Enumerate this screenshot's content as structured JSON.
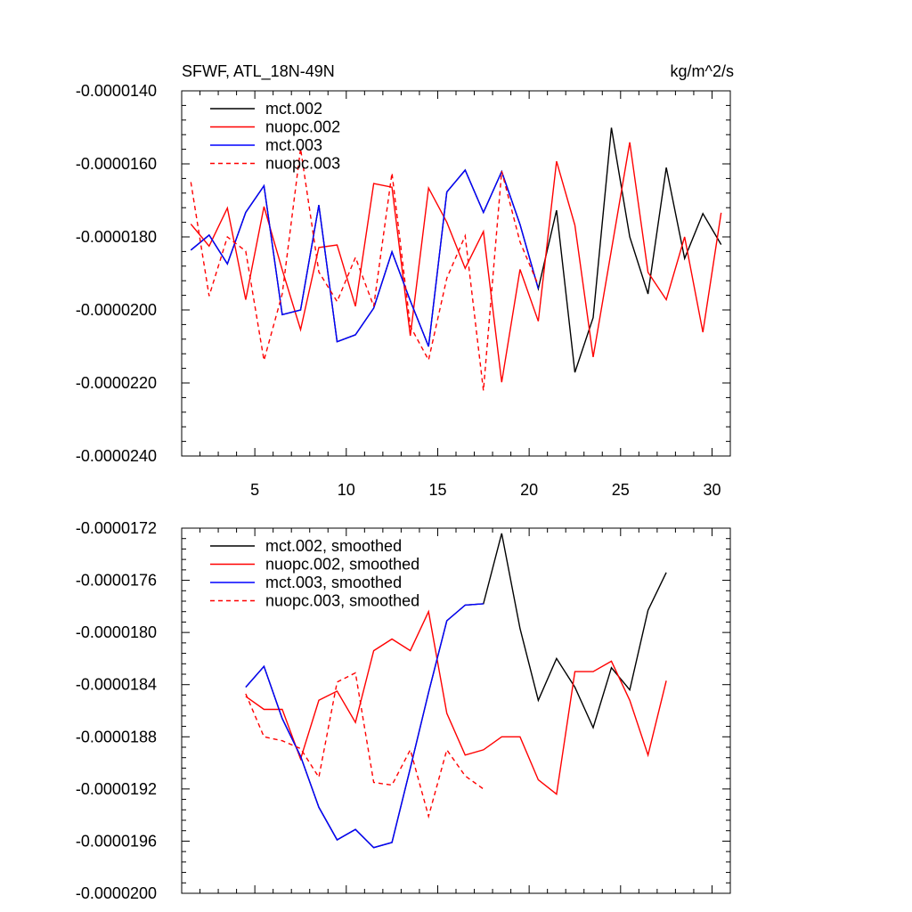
{
  "chart_data": [
    {
      "type": "line",
      "title": "SFWF, ATL_18N-49N",
      "units": "kg/m^2/s",
      "xlim": [
        1,
        31
      ],
      "ylim": [
        -2.4e-05,
        -1.4e-05
      ],
      "yticks": [
        {
          "value": -1.4e-05,
          "label": "-0.0000140"
        },
        {
          "value": -1.6e-05,
          "label": "-0.0000160"
        },
        {
          "value": -1.8e-05,
          "label": "-0.0000180"
        },
        {
          "value": -2e-05,
          "label": "-0.0000200"
        },
        {
          "value": -2.2e-05,
          "label": "-0.0000220"
        },
        {
          "value": -2.4e-05,
          "label": "-0.0000240"
        }
      ],
      "xticks": [
        {
          "value": 5,
          "label": "5"
        },
        {
          "value": 10,
          "label": "10"
        },
        {
          "value": 15,
          "label": "15"
        },
        {
          "value": 20,
          "label": "20"
        },
        {
          "value": 25,
          "label": "25"
        },
        {
          "value": 30,
          "label": "30"
        }
      ],
      "legend_position": "top-left",
      "series": [
        {
          "name": "mct.002",
          "color": "#000000",
          "dashed": false,
          "x": [
            1.5,
            2.5,
            3.5,
            4.5,
            5.5,
            6.5,
            7.5,
            8.5,
            9.5,
            10.5,
            11.5,
            12.5,
            13.5,
            14.5,
            15.5,
            16.5,
            17.5,
            18.5,
            19.5,
            20.5,
            21.5,
            22.5,
            23.5,
            24.5,
            25.5,
            26.5,
            27.5,
            28.5,
            29.5,
            30.5
          ],
          "values": [
            -1.836e-05,
            -1.795e-05,
            -1.874e-05,
            -1.733e-05,
            -1.66e-05,
            -2.013e-05,
            -2e-05,
            -1.713e-05,
            -2.087e-05,
            -2.068e-05,
            -1.995e-05,
            -1.841e-05,
            -1.975e-05,
            -2.1e-05,
            -1.677e-05,
            -1.617e-05,
            -1.733e-05,
            -1.621e-05,
            -1.766e-05,
            -1.942e-05,
            -1.727e-05,
            -2.171e-05,
            -2.021e-05,
            -1.501e-05,
            -1.8e-05,
            -1.956e-05,
            -1.61e-05,
            -1.859e-05,
            -1.736e-05,
            -1.821e-05
          ]
        },
        {
          "name": "nuopc.002",
          "color": "#ff0000",
          "dashed": false,
          "x": [
            1.5,
            2.5,
            3.5,
            4.5,
            5.5,
            6.5,
            7.5,
            8.5,
            9.5,
            10.5,
            11.5,
            12.5,
            13.5,
            14.5,
            15.5,
            16.5,
            17.5,
            18.5,
            19.5,
            20.5,
            21.5,
            22.5,
            23.5,
            24.5,
            25.5,
            26.5,
            27.5,
            28.5,
            29.5,
            30.5
          ],
          "values": [
            -1.765e-05,
            -1.825e-05,
            -1.721e-05,
            -1.972e-05,
            -1.717e-05,
            -1.89e-05,
            -2.054e-05,
            -1.829e-05,
            -1.822e-05,
            -1.99e-05,
            -1.654e-05,
            -1.664e-05,
            -2.071e-05,
            -1.666e-05,
            -1.76e-05,
            -1.886e-05,
            -1.785e-05,
            -2.198e-05,
            -1.889e-05,
            -2.031e-05,
            -1.593e-05,
            -1.768e-05,
            -2.129e-05,
            -1.836e-05,
            -1.541e-05,
            -1.897e-05,
            -1.972e-05,
            -1.8e-05,
            -2.061e-05,
            -1.734e-05
          ]
        },
        {
          "name": "mct.003",
          "color": "#0000ff",
          "dashed": false,
          "x": [
            1.5,
            2.5,
            3.5,
            4.5,
            5.5,
            6.5,
            7.5,
            8.5,
            9.5,
            10.5,
            11.5,
            12.5,
            13.5,
            14.5,
            15.5,
            16.5,
            17.5,
            18.5,
            19.5,
            20.5
          ],
          "values": [
            -1.836e-05,
            -1.795e-05,
            -1.874e-05,
            -1.733e-05,
            -1.66e-05,
            -2.013e-05,
            -2e-05,
            -1.713e-05,
            -2.087e-05,
            -2.068e-05,
            -1.995e-05,
            -1.841e-05,
            -1.975e-05,
            -2.1e-05,
            -1.677e-05,
            -1.617e-05,
            -1.733e-05,
            -1.621e-05,
            -1.766e-05,
            -1.942e-05
          ]
        },
        {
          "name": "nuopc.003",
          "color": "#ff0000",
          "dashed": true,
          "x": [
            1.5,
            2.5,
            3.5,
            4.5,
            5.5,
            6.5,
            7.5,
            8.5,
            9.5,
            10.5,
            11.5,
            12.5,
            13.5,
            14.5,
            15.5,
            16.5,
            17.5,
            18.5,
            19.5,
            20.5
          ],
          "values": [
            -1.65e-05,
            -1.962e-05,
            -1.8e-05,
            -1.839e-05,
            -2.138e-05,
            -1.956e-05,
            -1.558e-05,
            -1.896e-05,
            -1.977e-05,
            -1.856e-05,
            -1.99e-05,
            -1.625e-05,
            -2.045e-05,
            -2.137e-05,
            -1.913e-05,
            -1.797e-05,
            -2.221e-05,
            -1.62e-05,
            -1.814e-05,
            -1.932e-05
          ]
        }
      ]
    },
    {
      "type": "line",
      "title": "",
      "units": "",
      "xlim": [
        1,
        31
      ],
      "ylim": [
        -2e-05,
        -1.72e-05
      ],
      "yticks": [
        {
          "value": -1.72e-05,
          "label": "-0.0000172"
        },
        {
          "value": -1.76e-05,
          "label": "-0.0000176"
        },
        {
          "value": -1.8e-05,
          "label": "-0.0000180"
        },
        {
          "value": -1.84e-05,
          "label": "-0.0000184"
        },
        {
          "value": -1.88e-05,
          "label": "-0.0000188"
        },
        {
          "value": -1.92e-05,
          "label": "-0.0000192"
        },
        {
          "value": -1.96e-05,
          "label": "-0.0000196"
        },
        {
          "value": -2e-05,
          "label": "-0.0000200"
        }
      ],
      "xticks": [
        {
          "value": 5,
          "label": ""
        },
        {
          "value": 10,
          "label": ""
        },
        {
          "value": 15,
          "label": ""
        },
        {
          "value": 20,
          "label": ""
        },
        {
          "value": 25,
          "label": ""
        },
        {
          "value": 30,
          "label": ""
        }
      ],
      "legend_position": "top-left",
      "series": [
        {
          "name": "mct.002, smoothed",
          "color": "#000000",
          "dashed": false,
          "x": [
            4.5,
            5.5,
            6.5,
            7.5,
            8.5,
            9.5,
            10.5,
            11.5,
            12.5,
            13.5,
            14.5,
            15.5,
            16.5,
            17.5,
            18.5,
            19.5,
            20.5,
            21.5,
            22.5,
            23.5,
            24.5,
            25.5,
            26.5,
            27.5
          ],
          "values": [
            -1.842e-05,
            -1.826e-05,
            -1.866e-05,
            -1.895e-05,
            -1.934e-05,
            -1.959e-05,
            -1.951e-05,
            -1.965e-05,
            -1.961e-05,
            -1.904e-05,
            -1.846e-05,
            -1.791e-05,
            -1.779e-05,
            -1.778e-05,
            -1.724e-05,
            -1.797e-05,
            -1.852e-05,
            -1.82e-05,
            -1.842e-05,
            -1.873e-05,
            -1.827e-05,
            -1.844e-05,
            -1.783e-05,
            -1.754e-05
          ]
        },
        {
          "name": "nuopc.002, smoothed",
          "color": "#ff0000",
          "dashed": false,
          "x": [
            4.5,
            5.5,
            6.5,
            7.5,
            8.5,
            9.5,
            10.5,
            11.5,
            12.5,
            13.5,
            14.5,
            15.5,
            16.5,
            17.5,
            18.5,
            19.5,
            20.5,
            21.5,
            22.5,
            23.5,
            24.5,
            25.5,
            26.5,
            27.5
          ],
          "values": [
            -1.849e-05,
            -1.859e-05,
            -1.859e-05,
            -1.897e-05,
            -1.852e-05,
            -1.845e-05,
            -1.869e-05,
            -1.814e-05,
            -1.805e-05,
            -1.814e-05,
            -1.784e-05,
            -1.862e-05,
            -1.894e-05,
            -1.89e-05,
            -1.88e-05,
            -1.88e-05,
            -1.913e-05,
            -1.924e-05,
            -1.83e-05,
            -1.83e-05,
            -1.822e-05,
            -1.852e-05,
            -1.894e-05,
            -1.837e-05
          ]
        },
        {
          "name": "mct.003, smoothed",
          "color": "#0000ff",
          "dashed": false,
          "x": [
            4.5,
            5.5,
            6.5,
            7.5,
            8.5,
            9.5,
            10.5,
            11.5,
            12.5,
            13.5,
            14.5,
            15.5,
            16.5,
            17.5
          ],
          "values": [
            -1.842e-05,
            -1.826e-05,
            -1.866e-05,
            -1.895e-05,
            -1.934e-05,
            -1.959e-05,
            -1.951e-05,
            -1.965e-05,
            -1.961e-05,
            -1.904e-05,
            -1.846e-05,
            -1.791e-05,
            -1.779e-05,
            -1.778e-05
          ]
        },
        {
          "name": "nuopc.003, smoothed",
          "color": "#ff0000",
          "dashed": true,
          "x": [
            4.5,
            5.5,
            6.5,
            7.5,
            8.5,
            9.5,
            10.5,
            11.5,
            12.5,
            13.5,
            14.5,
            15.5,
            16.5,
            17.5
          ],
          "values": [
            -1.847e-05,
            -1.88e-05,
            -1.883e-05,
            -1.889e-05,
            -1.911e-05,
            -1.838e-05,
            -1.831e-05,
            -1.915e-05,
            -1.917e-05,
            -1.89e-05,
            -1.941e-05,
            -1.89e-05,
            -1.91e-05,
            -1.92e-05
          ]
        }
      ]
    }
  ]
}
